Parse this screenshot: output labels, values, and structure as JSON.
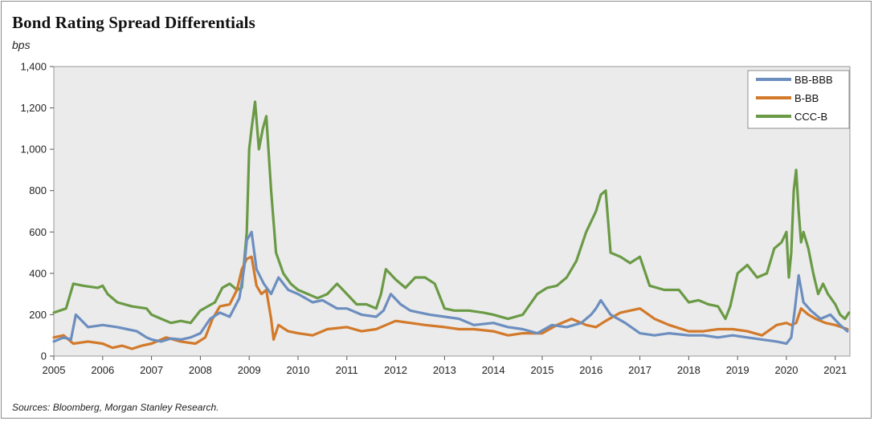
{
  "title": "Bond Rating Spread Differentials",
  "units": "bps",
  "source": "Sources: Bloomberg, Morgan Stanley Research.",
  "chart_data": {
    "type": "line",
    "ylim": [
      0,
      1400
    ],
    "xlim": [
      2005.0,
      2021.3
    ],
    "yticks": [
      "0",
      "200",
      "400",
      "600",
      "800",
      "1,000",
      "1,200",
      "1,400"
    ],
    "ytick_values": [
      0,
      200,
      400,
      600,
      800,
      1000,
      1200,
      1400
    ],
    "xticks": [
      "2005",
      "2006",
      "2007",
      "2008",
      "2009",
      "2010",
      "2011",
      "2012",
      "2013",
      "2014",
      "2015",
      "2016",
      "2017",
      "2018",
      "2019",
      "2020",
      "2021"
    ],
    "xtick_values": [
      2005,
      2006,
      2007,
      2008,
      2009,
      2010,
      2011,
      2012,
      2013,
      2014,
      2015,
      2016,
      2017,
      2018,
      2019,
      2020,
      2021
    ],
    "grid": false,
    "legend": "top-right",
    "series": [
      {
        "name": "BB-BBB",
        "color": "#6c8ebf",
        "x": [
          2005.0,
          2005.2,
          2005.35,
          2005.45,
          2005.7,
          2006.0,
          2006.3,
          2006.5,
          2006.7,
          2006.9,
          2007.0,
          2007.2,
          2007.4,
          2007.6,
          2007.8,
          2008.0,
          2008.2,
          2008.4,
          2008.6,
          2008.8,
          2008.9,
          2008.95,
          2009.05,
          2009.15,
          2009.3,
          2009.45,
          2009.6,
          2009.8,
          2010.0,
          2010.3,
          2010.5,
          2010.8,
          2011.0,
          2011.3,
          2011.6,
          2011.75,
          2011.9,
          2012.1,
          2012.3,
          2012.5,
          2012.7,
          2013.0,
          2013.3,
          2013.6,
          2014.0,
          2014.3,
          2014.6,
          2014.9,
          2015.2,
          2015.5,
          2015.8,
          2016.0,
          2016.1,
          2016.2,
          2016.4,
          2016.7,
          2017.0,
          2017.3,
          2017.6,
          2018.0,
          2018.3,
          2018.6,
          2018.9,
          2019.2,
          2019.5,
          2019.8,
          2020.0,
          2020.1,
          2020.18,
          2020.25,
          2020.35,
          2020.5,
          2020.7,
          2020.9,
          2021.1,
          2021.25
        ],
        "values": [
          70,
          90,
          80,
          200,
          140,
          150,
          140,
          130,
          120,
          90,
          80,
          70,
          85,
          80,
          90,
          110,
          180,
          210,
          190,
          280,
          430,
          560,
          600,
          420,
          350,
          300,
          380,
          320,
          300,
          260,
          270,
          230,
          230,
          200,
          190,
          220,
          300,
          250,
          220,
          210,
          200,
          190,
          180,
          150,
          160,
          140,
          130,
          110,
          150,
          140,
          160,
          200,
          230,
          270,
          200,
          160,
          110,
          100,
          110,
          100,
          100,
          90,
          100,
          90,
          80,
          70,
          60,
          90,
          240,
          390,
          260,
          220,
          180,
          200,
          150,
          120
        ]
      },
      {
        "name": "B-BB",
        "color": "#d2792a",
        "x": [
          2005.0,
          2005.2,
          2005.4,
          2005.7,
          2006.0,
          2006.2,
          2006.4,
          2006.6,
          2006.8,
          2007.0,
          2007.3,
          2007.6,
          2007.9,
          2008.1,
          2008.25,
          2008.4,
          2008.6,
          2008.75,
          2008.85,
          2008.95,
          2009.05,
          2009.15,
          2009.25,
          2009.35,
          2009.45,
          2009.5,
          2009.6,
          2009.8,
          2010.0,
          2010.3,
          2010.6,
          2011.0,
          2011.3,
          2011.6,
          2011.8,
          2012.0,
          2012.3,
          2012.6,
          2013.0,
          2013.3,
          2013.6,
          2014.0,
          2014.3,
          2014.6,
          2015.0,
          2015.3,
          2015.6,
          2015.9,
          2016.1,
          2016.3,
          2016.6,
          2017.0,
          2017.3,
          2017.6,
          2018.0,
          2018.3,
          2018.6,
          2018.9,
          2019.2,
          2019.5,
          2019.8,
          2020.0,
          2020.1,
          2020.2,
          2020.3,
          2020.45,
          2020.6,
          2020.8,
          2021.0,
          2021.25
        ],
        "values": [
          90,
          100,
          60,
          70,
          60,
          40,
          50,
          35,
          50,
          60,
          90,
          70,
          60,
          90,
          180,
          240,
          250,
          320,
          420,
          470,
          480,
          340,
          300,
          320,
          180,
          80,
          150,
          120,
          110,
          100,
          130,
          140,
          120,
          130,
          150,
          170,
          160,
          150,
          140,
          130,
          130,
          120,
          100,
          110,
          110,
          150,
          180,
          150,
          140,
          170,
          210,
          230,
          180,
          150,
          120,
          120,
          130,
          130,
          120,
          100,
          150,
          160,
          150,
          160,
          230,
          200,
          180,
          160,
          150,
          130
        ]
      },
      {
        "name": "CCC-B",
        "color": "#6a9a45",
        "x": [
          2005.0,
          2005.25,
          2005.4,
          2005.6,
          2005.9,
          2006.0,
          2006.1,
          2006.3,
          2006.6,
          2006.9,
          2007.0,
          2007.2,
          2007.4,
          2007.6,
          2007.8,
          2008.0,
          2008.15,
          2008.3,
          2008.45,
          2008.6,
          2008.75,
          2008.85,
          2008.95,
          2009.0,
          2009.05,
          2009.12,
          2009.2,
          2009.28,
          2009.35,
          2009.45,
          2009.55,
          2009.7,
          2009.85,
          2010.0,
          2010.2,
          2010.4,
          2010.6,
          2010.8,
          2011.0,
          2011.2,
          2011.4,
          2011.6,
          2011.7,
          2011.8,
          2012.0,
          2012.2,
          2012.4,
          2012.6,
          2012.8,
          2013.0,
          2013.2,
          2013.5,
          2013.8,
          2014.0,
          2014.3,
          2014.6,
          2014.9,
          2015.1,
          2015.3,
          2015.5,
          2015.7,
          2015.9,
          2016.0,
          2016.1,
          2016.2,
          2016.3,
          2016.4,
          2016.6,
          2016.8,
          2017.0,
          2017.2,
          2017.5,
          2017.8,
          2018.0,
          2018.2,
          2018.4,
          2018.6,
          2018.75,
          2018.85,
          2019.0,
          2019.2,
          2019.4,
          2019.6,
          2019.75,
          2019.9,
          2020.0,
          2020.05,
          2020.1,
          2020.15,
          2020.2,
          2020.25,
          2020.3,
          2020.35,
          2020.45,
          2020.55,
          2020.65,
          2020.75,
          2020.85,
          2021.0,
          2021.1,
          2021.2,
          2021.28
        ],
        "values": [
          210,
          230,
          350,
          340,
          330,
          340,
          300,
          260,
          240,
          230,
          200,
          180,
          160,
          170,
          160,
          220,
          240,
          260,
          330,
          350,
          320,
          330,
          600,
          1000,
          1100,
          1230,
          1000,
          1100,
          1160,
          800,
          500,
          400,
          350,
          320,
          300,
          280,
          300,
          350,
          300,
          250,
          250,
          230,
          300,
          420,
          370,
          330,
          380,
          380,
          350,
          230,
          220,
          220,
          210,
          200,
          180,
          200,
          300,
          330,
          340,
          380,
          460,
          600,
          650,
          700,
          780,
          800,
          500,
          480,
          450,
          480,
          340,
          320,
          320,
          260,
          270,
          250,
          240,
          180,
          240,
          400,
          440,
          380,
          400,
          520,
          550,
          600,
          380,
          500,
          800,
          900,
          700,
          550,
          600,
          520,
          400,
          300,
          350,
          300,
          250,
          200,
          180,
          210
        ]
      }
    ]
  }
}
